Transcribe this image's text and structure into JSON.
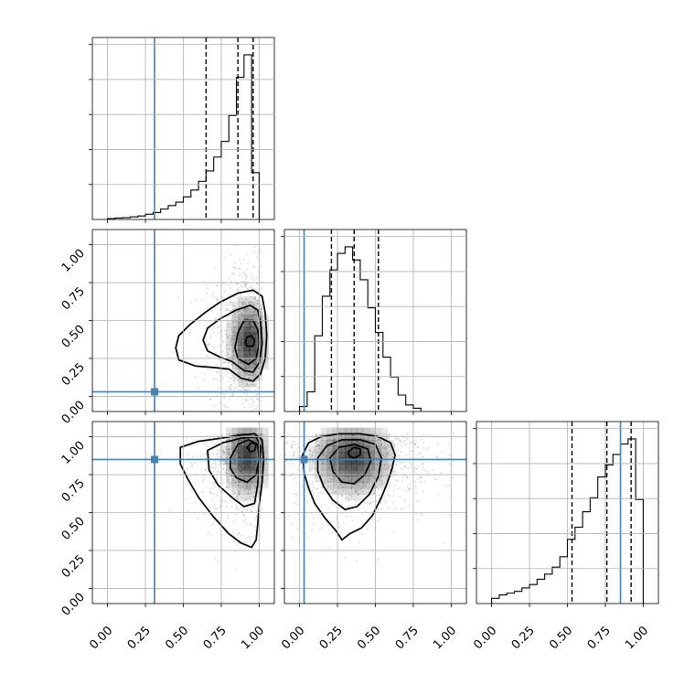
{
  "chart_data": {
    "type": "corner",
    "parameters": [
      "",
      "",
      ""
    ],
    "ticks": [
      0.0,
      0.25,
      0.5,
      0.75,
      1.0
    ],
    "tick_labels": [
      "0.00",
      "0.25",
      "0.50",
      "0.75",
      "1.00"
    ],
    "range": [
      -0.1,
      1.1
    ],
    "grid": true,
    "colors": {
      "truth": "#4682b4",
      "line": "#000000",
      "grid": "#b0b0b0"
    },
    "truths": [
      0.31,
      0.03,
      0.85
    ],
    "quantiles": [
      [
        0.65,
        0.86,
        0.96
      ],
      [
        0.21,
        0.36,
        0.52
      ],
      [
        0.53,
        0.76,
        0.92
      ]
    ],
    "histograms": [
      {
        "bins": [
          0.0,
          0.05,
          0.1,
          0.15,
          0.2,
          0.25,
          0.3,
          0.35,
          0.4,
          0.45,
          0.5,
          0.55,
          0.6,
          0.65,
          0.7,
          0.75,
          0.8,
          0.85,
          0.9,
          0.95,
          1.0
        ],
        "counts": [
          0.005,
          0.008,
          0.01,
          0.015,
          0.02,
          0.03,
          0.04,
          0.06,
          0.08,
          0.1,
          0.13,
          0.17,
          0.22,
          0.28,
          0.36,
          0.45,
          0.6,
          0.82,
          0.95,
          0.27
        ]
      },
      {
        "bins": [
          0.0,
          0.05,
          0.1,
          0.15,
          0.2,
          0.25,
          0.3,
          0.35,
          0.4,
          0.45,
          0.5,
          0.55,
          0.6,
          0.65,
          0.7,
          0.75,
          0.8
        ],
        "counts": [
          0.03,
          0.12,
          0.46,
          0.7,
          0.86,
          0.96,
          1.0,
          0.92,
          0.8,
          0.63,
          0.48,
          0.33,
          0.21,
          0.1,
          0.04,
          0.02
        ]
      },
      {
        "bins": [
          0.0,
          0.05,
          0.1,
          0.15,
          0.2,
          0.25,
          0.3,
          0.35,
          0.4,
          0.45,
          0.5,
          0.55,
          0.6,
          0.65,
          0.7,
          0.75,
          0.8,
          0.85,
          0.9,
          0.95,
          1.0
        ],
        "counts": [
          0.03,
          0.05,
          0.06,
          0.07,
          0.09,
          0.11,
          0.14,
          0.17,
          0.21,
          0.27,
          0.37,
          0.44,
          0.53,
          0.61,
          0.73,
          0.8,
          0.86,
          0.92,
          0.95,
          0.6
        ]
      }
    ],
    "contours": {
      "1-0": [
        [
          [
            0.8,
            0.18
          ],
          [
            0.88,
            0.12
          ],
          [
            0.96,
            0.1
          ],
          [
            1.01,
            0.15
          ],
          [
            1.04,
            0.25
          ],
          [
            1.05,
            0.4
          ],
          [
            1.04,
            0.55
          ],
          [
            1.02,
            0.66
          ],
          [
            0.96,
            0.7
          ],
          [
            0.86,
            0.68
          ],
          [
            0.74,
            0.62
          ],
          [
            0.64,
            0.55
          ],
          [
            0.54,
            0.47
          ],
          [
            0.47,
            0.4
          ],
          [
            0.45,
            0.32
          ],
          [
            0.47,
            0.24
          ],
          [
            0.58,
            0.2
          ],
          [
            0.7,
            0.19
          ]
        ],
        [
          [
            0.82,
            0.23
          ],
          [
            0.9,
            0.17
          ],
          [
            0.96,
            0.16
          ],
          [
            1.0,
            0.22
          ],
          [
            1.02,
            0.35
          ],
          [
            1.01,
            0.48
          ],
          [
            0.99,
            0.57
          ],
          [
            0.94,
            0.6
          ],
          [
            0.85,
            0.57
          ],
          [
            0.74,
            0.51
          ],
          [
            0.66,
            0.45
          ],
          [
            0.63,
            0.37
          ],
          [
            0.66,
            0.3
          ],
          [
            0.74,
            0.26
          ]
        ],
        [
          [
            0.86,
            0.25
          ],
          [
            0.93,
            0.21
          ],
          [
            0.98,
            0.25
          ],
          [
            1.0,
            0.35
          ],
          [
            0.99,
            0.44
          ],
          [
            0.96,
            0.5
          ],
          [
            0.9,
            0.5
          ],
          [
            0.86,
            0.42
          ],
          [
            0.84,
            0.32
          ]
        ],
        [
          [
            0.92,
            0.33
          ],
          [
            0.96,
            0.33
          ],
          [
            0.97,
            0.37
          ],
          [
            0.95,
            0.4
          ],
          [
            0.92,
            0.39
          ],
          [
            0.91,
            0.36
          ]
        ]
      ],
      "2-0": [
        [
          [
            0.48,
            0.93
          ],
          [
            0.6,
            0.97
          ],
          [
            0.75,
            0.99
          ],
          [
            0.87,
            1.01
          ],
          [
            0.97,
            1.02
          ],
          [
            1.02,
            0.98
          ],
          [
            1.03,
            0.85
          ],
          [
            1.02,
            0.7
          ],
          [
            1.0,
            0.55
          ],
          [
            0.99,
            0.42
          ],
          [
            0.98,
            0.32
          ],
          [
            0.95,
            0.27
          ],
          [
            0.88,
            0.3
          ],
          [
            0.8,
            0.36
          ],
          [
            0.7,
            0.47
          ],
          [
            0.6,
            0.6
          ],
          [
            0.53,
            0.72
          ],
          [
            0.48,
            0.82
          ]
        ],
        [
          [
            0.66,
            0.91
          ],
          [
            0.76,
            0.96
          ],
          [
            0.88,
            0.99
          ],
          [
            0.98,
            1.0
          ],
          [
            1.01,
            0.93
          ],
          [
            1.0,
            0.82
          ],
          [
            0.99,
            0.68
          ],
          [
            0.97,
            0.56
          ],
          [
            0.9,
            0.54
          ],
          [
            0.82,
            0.6
          ],
          [
            0.73,
            0.68
          ],
          [
            0.67,
            0.78
          ]
        ],
        [
          [
            0.81,
            0.86
          ],
          [
            0.86,
            0.95
          ],
          [
            0.93,
            0.98
          ],
          [
            0.99,
            0.95
          ],
          [
            1.0,
            0.85
          ],
          [
            0.98,
            0.75
          ],
          [
            0.92,
            0.7
          ],
          [
            0.85,
            0.73
          ],
          [
            0.81,
            0.79
          ]
        ],
        [
          [
            0.92,
            0.93
          ],
          [
            0.95,
            0.96
          ],
          [
            0.98,
            0.95
          ],
          [
            0.97,
            0.91
          ],
          [
            0.94,
            0.9
          ]
        ]
      ],
      "2-1": [
        [
          [
            0.02,
            0.88
          ],
          [
            0.06,
            0.96
          ],
          [
            0.14,
            1.0
          ],
          [
            0.26,
            1.02
          ],
          [
            0.4,
            1.02
          ],
          [
            0.52,
            1.0
          ],
          [
            0.6,
            0.96
          ],
          [
            0.63,
            0.88
          ],
          [
            0.61,
            0.79
          ],
          [
            0.58,
            0.7
          ],
          [
            0.54,
            0.6
          ],
          [
            0.48,
            0.48
          ],
          [
            0.41,
            0.4
          ],
          [
            0.33,
            0.36
          ],
          [
            0.28,
            0.32
          ],
          [
            0.24,
            0.38
          ],
          [
            0.17,
            0.46
          ],
          [
            0.1,
            0.56
          ],
          [
            0.06,
            0.66
          ],
          [
            0.03,
            0.76
          ]
        ],
        [
          [
            0.12,
            0.86
          ],
          [
            0.18,
            0.94
          ],
          [
            0.28,
            0.98
          ],
          [
            0.4,
            0.98
          ],
          [
            0.5,
            0.95
          ],
          [
            0.54,
            0.86
          ],
          [
            0.52,
            0.74
          ],
          [
            0.46,
            0.62
          ],
          [
            0.38,
            0.54
          ],
          [
            0.3,
            0.52
          ],
          [
            0.22,
            0.58
          ],
          [
            0.16,
            0.67
          ],
          [
            0.12,
            0.77
          ]
        ],
        [
          [
            0.2,
            0.86
          ],
          [
            0.26,
            0.93
          ],
          [
            0.36,
            0.95
          ],
          [
            0.45,
            0.92
          ],
          [
            0.47,
            0.84
          ],
          [
            0.43,
            0.75
          ],
          [
            0.36,
            0.69
          ],
          [
            0.28,
            0.7
          ],
          [
            0.22,
            0.77
          ]
        ],
        [
          [
            0.32,
            0.9
          ],
          [
            0.36,
            0.93
          ],
          [
            0.4,
            0.92
          ],
          [
            0.4,
            0.88
          ],
          [
            0.36,
            0.86
          ],
          [
            0.33,
            0.87
          ]
        ]
      ]
    },
    "density_peaks": {
      "1-0": {
        "x": 0.93,
        "y": 0.36,
        "sx": 0.07,
        "sy": 0.15
      },
      "2-0": {
        "x": 0.92,
        "y": 0.87,
        "sx": 0.08,
        "sy": 0.14
      },
      "2-1": {
        "x": 0.35,
        "y": 0.86,
        "sx": 0.14,
        "sy": 0.13
      }
    }
  }
}
